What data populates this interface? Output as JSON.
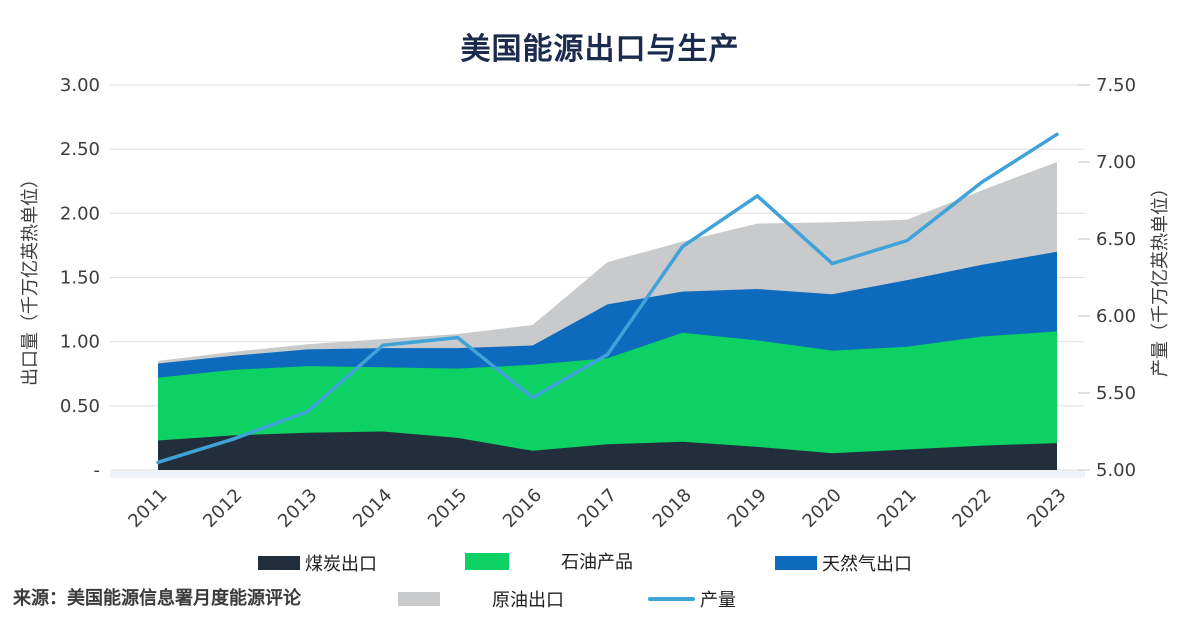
{
  "title": "美国能源出口与生产",
  "source": "来源：美国能源信息署月度能源评论",
  "colors": {
    "title_navy": "#1b2b4d",
    "coal": "#232e3c",
    "petroleum": "#0dd162",
    "natural_gas": "#0d6abc",
    "crude_oil": "#c8cacc",
    "production_line": "#3fa2d9",
    "gridline": "#e2e2e2",
    "tick_text": "#3d3d3d",
    "baseline_strip": "#edf3f9"
  },
  "chart_data": {
    "type": "area",
    "title": "美国能源出口与生产",
    "x": [
      2011,
      2012,
      2013,
      2014,
      2015,
      2016,
      2017,
      2018,
      2019,
      2020,
      2021,
      2022,
      2023
    ],
    "series": [
      {
        "name": "煤炭出口",
        "type": "area-stacked",
        "axis": "left",
        "color": "#232e3c",
        "values": [
          0.23,
          0.27,
          0.29,
          0.3,
          0.25,
          0.15,
          0.2,
          0.22,
          0.18,
          0.13,
          0.16,
          0.19,
          0.21
        ]
      },
      {
        "name": "石油产品",
        "type": "area-stacked",
        "axis": "left",
        "color": "#0dd162",
        "values": [
          0.49,
          0.51,
          0.52,
          0.5,
          0.54,
          0.67,
          0.67,
          0.85,
          0.83,
          0.8,
          0.8,
          0.85,
          0.87
        ]
      },
      {
        "name": "天然气出口",
        "type": "area-stacked",
        "axis": "left",
        "color": "#0d6abc",
        "values": [
          0.11,
          0.11,
          0.13,
          0.15,
          0.16,
          0.15,
          0.42,
          0.32,
          0.4,
          0.44,
          0.52,
          0.56,
          0.62
        ]
      },
      {
        "name": "原油出口",
        "type": "area-stacked",
        "axis": "left",
        "color": "#c8cacc",
        "values": [
          0.02,
          0.03,
          0.04,
          0.07,
          0.11,
          0.16,
          0.33,
          0.39,
          0.51,
          0.56,
          0.47,
          0.58,
          0.7
        ]
      },
      {
        "name": "产量",
        "type": "line",
        "axis": "right",
        "color": "#3fa2d9",
        "values": [
          5.05,
          5.2,
          5.38,
          5.81,
          5.86,
          5.47,
          5.75,
          6.45,
          6.78,
          6.34,
          6.49,
          6.87,
          7.18
        ]
      }
    ],
    "left_axis": {
      "label": "出口量（千万亿英热单位）",
      "min": 0,
      "max": 3.0,
      "step": 0.5,
      "tick_labels": [
        "-",
        "0.50",
        "1.00",
        "1.50",
        "2.00",
        "2.50",
        "3.00"
      ]
    },
    "right_axis": {
      "label": "产量（千万亿英热单位）",
      "min": 5.0,
      "max": 7.5,
      "step": 0.5,
      "tick_labels": [
        "5.00",
        "5.50",
        "6.00",
        "6.50",
        "7.00",
        "7.50"
      ]
    },
    "grid": true,
    "legend_position": "bottom"
  }
}
